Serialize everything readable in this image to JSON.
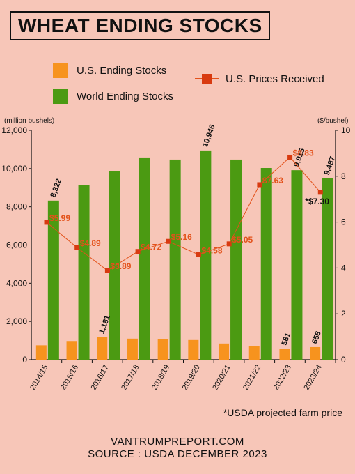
{
  "title": "WHEAT ENDING STOCKS",
  "legend": {
    "us_stocks": "U.S. Ending Stocks",
    "world_stocks": "World Ending Stocks",
    "us_prices": "U.S. Prices Received"
  },
  "colors": {
    "us": "#f7931e",
    "world": "#4b9a12",
    "price": "#e3521b",
    "background": "#f7c6b8"
  },
  "note": "*USDA projected farm price",
  "footer": {
    "site": "VANTRUMPREPORT.COM",
    "source": "SOURCE : USDA DECEMBER 2023"
  },
  "chart_data": {
    "type": "bar",
    "categories": [
      "2014/15",
      "2015/16",
      "2016/17",
      "2017/18",
      "2018/19",
      "2019/20",
      "2020/21",
      "2021/22",
      "2022/23",
      "2023/24"
    ],
    "ylabel": "(million bushels)",
    "y2label": "($/bushel)",
    "ylim": [
      0,
      12000
    ],
    "y2lim": [
      0,
      10
    ],
    "yticks": [
      "0",
      "2,000",
      "4,000",
      "6,000",
      "8,000",
      "10,000",
      "12,000"
    ],
    "y2ticks": [
      "0",
      "2",
      "4",
      "6",
      "8",
      "10"
    ],
    "series": [
      {
        "name": "U.S. Ending Stocks",
        "values": [
          752,
          976,
          1181,
          1100,
          1080,
          1028,
          845,
          698,
          581,
          658
        ],
        "labels": [
          "",
          "",
          "1,181",
          "",
          "",
          "",
          "",
          "",
          "581",
          "658"
        ]
      },
      {
        "name": "World Ending Stocks",
        "values": [
          8322,
          9150,
          9870,
          10580,
          10470,
          10946,
          10470,
          10030,
          9915,
          9487
        ],
        "labels": [
          "8,322",
          "",
          "",
          "",
          "",
          "10,946",
          "",
          "",
          "9,915",
          "9,487"
        ]
      }
    ],
    "line_series": {
      "name": "U.S. Prices Received",
      "values": [
        5.99,
        4.89,
        3.89,
        4.72,
        5.16,
        4.58,
        5.05,
        7.63,
        8.83,
        7.3
      ],
      "labels": [
        "$5.99",
        "$4.89",
        "$3.89",
        "$4.72",
        "$5.16",
        "$4.58",
        "$5.05",
        "$7.63",
        "$8.83",
        "*$7.30"
      ]
    }
  }
}
